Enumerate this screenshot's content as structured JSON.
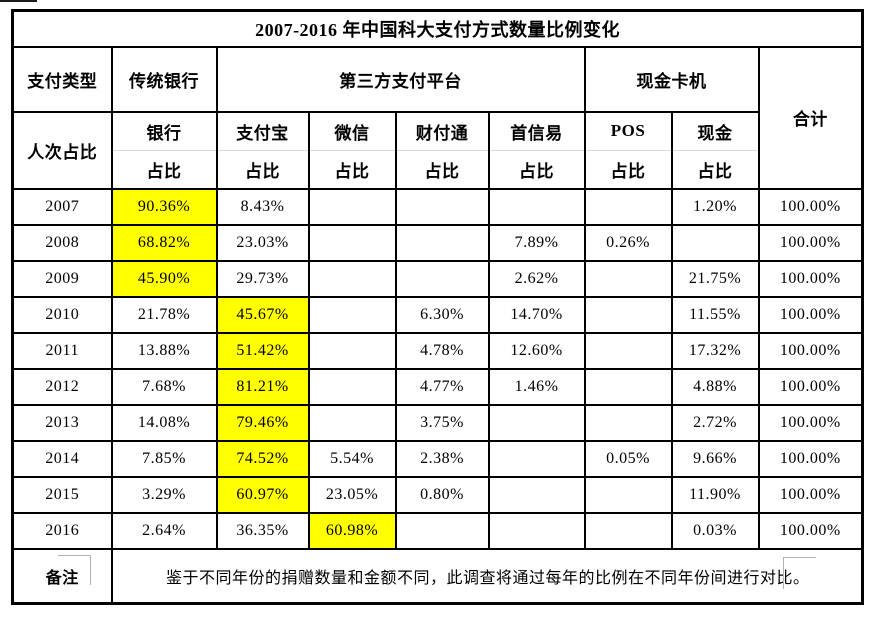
{
  "table": {
    "title": "2007-2016 年中国科大支付方式数量比例变化",
    "highlight_color": "#FFFF00",
    "header": {
      "payment_type": "支付类型",
      "traditional_bank": "传统银行",
      "third_party_platform": "第三方支付平台",
      "cash_card_machine": "现金卡机",
      "total": "合计",
      "per_capita_ratio": "人次占比",
      "subcolumns": [
        {
          "name": "bank",
          "line1": "银行",
          "line2": "占比"
        },
        {
          "name": "alipay",
          "line1": "支付宝",
          "line2": "占比"
        },
        {
          "name": "wechat",
          "line1": "微信",
          "line2": "占比"
        },
        {
          "name": "tenpay",
          "line1": "财付通",
          "line2": "占比"
        },
        {
          "name": "paypalm",
          "line1": "首信易",
          "line2": "占比"
        },
        {
          "name": "pos",
          "line1": "POS",
          "line2": "占比"
        },
        {
          "name": "cash",
          "line1": "现金",
          "line2": "占比"
        }
      ]
    },
    "rows": [
      {
        "year": "2007",
        "values": [
          "90.36%",
          "8.43%",
          "",
          "",
          "",
          "",
          "1.20%"
        ],
        "total": "100.00%",
        "highlight_index": 0
      },
      {
        "year": "2008",
        "values": [
          "68.82%",
          "23.03%",
          "",
          "",
          "7.89%",
          "0.26%",
          ""
        ],
        "total": "100.00%",
        "highlight_index": 0
      },
      {
        "year": "2009",
        "values": [
          "45.90%",
          "29.73%",
          "",
          "",
          "2.62%",
          "",
          "21.75%"
        ],
        "total": "100.00%",
        "highlight_index": 0
      },
      {
        "year": "2010",
        "values": [
          "21.78%",
          "45.67%",
          "",
          "6.30%",
          "14.70%",
          "",
          "11.55%"
        ],
        "total": "100.00%",
        "highlight_index": 1
      },
      {
        "year": "2011",
        "values": [
          "13.88%",
          "51.42%",
          "",
          "4.78%",
          "12.60%",
          "",
          "17.32%"
        ],
        "total": "100.00%",
        "highlight_index": 1
      },
      {
        "year": "2012",
        "values": [
          "7.68%",
          "81.21%",
          "",
          "4.77%",
          "1.46%",
          "",
          "4.88%"
        ],
        "total": "100.00%",
        "highlight_index": 1
      },
      {
        "year": "2013",
        "values": [
          "14.08%",
          "79.46%",
          "",
          "3.75%",
          "",
          "",
          "2.72%"
        ],
        "total": "100.00%",
        "highlight_index": 1
      },
      {
        "year": "2014",
        "values": [
          "7.85%",
          "74.52%",
          "5.54%",
          "2.38%",
          "",
          "0.05%",
          "9.66%"
        ],
        "total": "100.00%",
        "highlight_index": 1
      },
      {
        "year": "2015",
        "values": [
          "3.29%",
          "60.97%",
          "23.05%",
          "0.80%",
          "",
          "",
          "11.90%"
        ],
        "total": "100.00%",
        "highlight_index": 1
      },
      {
        "year": "2016",
        "values": [
          "2.64%",
          "36.35%",
          "60.98%",
          "",
          "",
          "",
          "0.03%"
        ],
        "total": "100.00%",
        "highlight_index": 2
      }
    ],
    "note": {
      "label": "备注",
      "text": "鉴于不同年份的捐赠数量和金额不同，此调查将通过每年的比例在不同年份间进行对比。"
    }
  },
  "chart_data": {
    "type": "table",
    "title": "2007-2016 年中国科大支付方式数量比例变化",
    "categories": [
      "2007",
      "2008",
      "2009",
      "2010",
      "2011",
      "2012",
      "2013",
      "2014",
      "2015",
      "2016"
    ],
    "unit": "%",
    "series": [
      {
        "name": "银行占比",
        "group": "传统银行",
        "values": [
          90.36,
          68.82,
          45.9,
          21.78,
          13.88,
          7.68,
          14.08,
          7.85,
          3.29,
          2.64
        ]
      },
      {
        "name": "支付宝占比",
        "group": "第三方支付平台",
        "values": [
          8.43,
          23.03,
          29.73,
          45.67,
          51.42,
          81.21,
          79.46,
          74.52,
          60.97,
          36.35
        ]
      },
      {
        "name": "微信占比",
        "group": "第三方支付平台",
        "values": [
          null,
          null,
          null,
          null,
          null,
          null,
          null,
          5.54,
          23.05,
          60.98
        ]
      },
      {
        "name": "财付通占比",
        "group": "第三方支付平台",
        "values": [
          null,
          null,
          null,
          6.3,
          4.78,
          4.77,
          3.75,
          2.38,
          0.8,
          null
        ]
      },
      {
        "name": "首信易占比",
        "group": "第三方支付平台",
        "values": [
          null,
          7.89,
          2.62,
          14.7,
          12.6,
          1.46,
          null,
          null,
          null,
          null
        ]
      },
      {
        "name": "POS占比",
        "group": "现金卡机",
        "values": [
          null,
          0.26,
          null,
          null,
          null,
          null,
          null,
          0.05,
          null,
          null
        ]
      },
      {
        "name": "现金占比",
        "group": "现金卡机",
        "values": [
          1.2,
          null,
          21.75,
          11.55,
          17.32,
          4.88,
          2.72,
          9.66,
          11.9,
          0.03
        ]
      },
      {
        "name": "合计",
        "group": "合计",
        "values": [
          100.0,
          100.0,
          100.0,
          100.0,
          100.0,
          100.0,
          100.0,
          100.0,
          100.0,
          100.0
        ]
      }
    ],
    "highlighted_cells": [
      {
        "year": "2007",
        "column": "银行占比"
      },
      {
        "year": "2008",
        "column": "银行占比"
      },
      {
        "year": "2009",
        "column": "银行占比"
      },
      {
        "year": "2010",
        "column": "支付宝占比"
      },
      {
        "year": "2011",
        "column": "支付宝占比"
      },
      {
        "year": "2012",
        "column": "支付宝占比"
      },
      {
        "year": "2013",
        "column": "支付宝占比"
      },
      {
        "year": "2014",
        "column": "支付宝占比"
      },
      {
        "year": "2015",
        "column": "支付宝占比"
      },
      {
        "year": "2016",
        "column": "微信占比"
      }
    ]
  }
}
